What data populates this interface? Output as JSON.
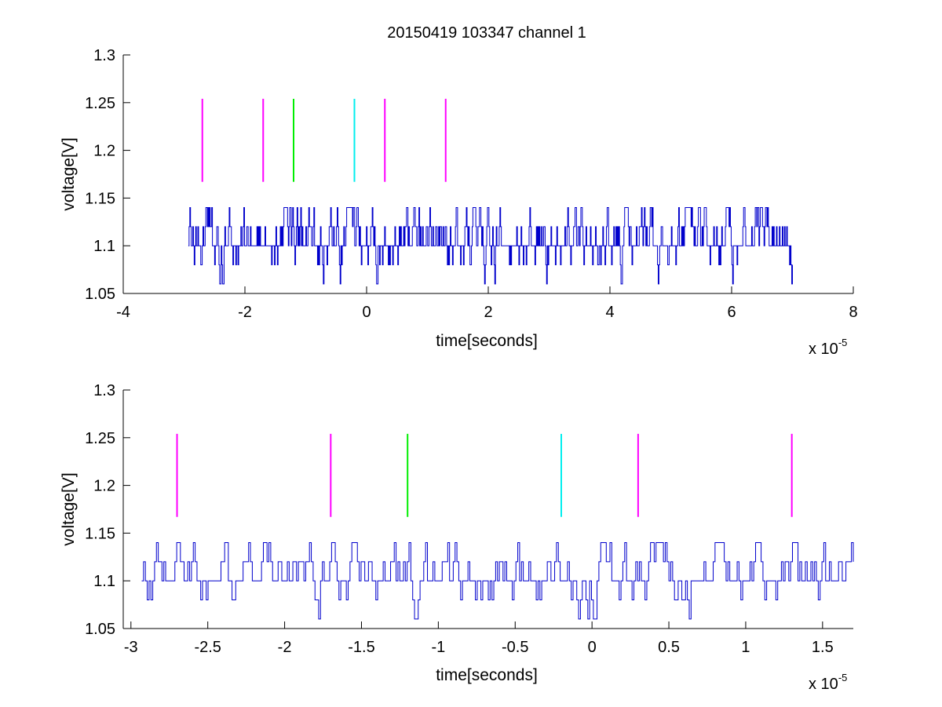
{
  "figure": {
    "title": "20150419 103347 channel 1"
  },
  "chart_data": [
    {
      "type": "line",
      "title": "20150419 103347 channel 1",
      "xlabel": "time[seconds]",
      "ylabel": "voltage[V]",
      "x_multiplier_label": "x 10",
      "x_multiplier_exponent": "-5",
      "xlim": [
        -4,
        8
      ],
      "ylim": [
        1.05,
        1.3
      ],
      "xticks": [
        -4,
        -2,
        0,
        2,
        4,
        6,
        8
      ],
      "xtick_labels": [
        "-4",
        "-2",
        "0",
        "2",
        "4",
        "6",
        "8"
      ],
      "yticks": [
        1.05,
        1.1,
        1.15,
        1.2,
        1.25,
        1.3
      ],
      "ytick_labels": [
        "1.05",
        "1.1",
        "1.15",
        "1.2",
        "1.25",
        "1.3"
      ],
      "grid": false,
      "signal": {
        "color": "#0000cc",
        "x_start": -2.93,
        "x_end": 7.0,
        "levels": [
          1.06,
          1.08,
          1.1,
          1.12,
          1.14
        ]
      },
      "markers": [
        {
          "x": -2.7,
          "y_range": [
            1.167,
            1.254
          ],
          "color": "#ff00ff"
        },
        {
          "x": -1.7,
          "y_range": [
            1.167,
            1.254
          ],
          "color": "#ff00ff"
        },
        {
          "x": -1.2,
          "y_range": [
            1.167,
            1.254
          ],
          "color": "#00ee00"
        },
        {
          "x": -0.2,
          "y_range": [
            1.167,
            1.254
          ],
          "color": "#00eeee"
        },
        {
          "x": 0.3,
          "y_range": [
            1.167,
            1.254
          ],
          "color": "#ff00ff"
        },
        {
          "x": 1.3,
          "y_range": [
            1.167,
            1.254
          ],
          "color": "#ff00ff"
        }
      ]
    },
    {
      "type": "line",
      "title": "",
      "xlabel": "time[seconds]",
      "ylabel": "voltage[V]",
      "x_multiplier_label": "x 10",
      "x_multiplier_exponent": "-5",
      "xlim": [
        -3.05,
        1.7
      ],
      "ylim": [
        1.05,
        1.3
      ],
      "xticks": [
        -3,
        -2.5,
        -2,
        -1.5,
        -1,
        -0.5,
        0,
        0.5,
        1,
        1.5
      ],
      "xtick_labels": [
        "-3",
        "-2.5",
        "-2",
        "-1.5",
        "-1",
        "-0.5",
        "0",
        "0.5",
        "1",
        "1.5"
      ],
      "yticks": [
        1.05,
        1.1,
        1.15,
        1.2,
        1.25,
        1.3
      ],
      "ytick_labels": [
        "1.05",
        "1.1",
        "1.15",
        "1.2",
        "1.25",
        "1.3"
      ],
      "grid": false,
      "signal": {
        "color": "#0000cc",
        "x_start": -2.93,
        "x_end": 1.7,
        "levels": [
          1.06,
          1.08,
          1.1,
          1.12,
          1.14
        ]
      },
      "markers": [
        {
          "x": -2.7,
          "y_range": [
            1.167,
            1.254
          ],
          "color": "#ff00ff"
        },
        {
          "x": -1.7,
          "y_range": [
            1.167,
            1.254
          ],
          "color": "#ff00ff"
        },
        {
          "x": -1.2,
          "y_range": [
            1.167,
            1.254
          ],
          "color": "#00ee00"
        },
        {
          "x": -0.2,
          "y_range": [
            1.167,
            1.254
          ],
          "color": "#00eeee"
        },
        {
          "x": 0.3,
          "y_range": [
            1.167,
            1.254
          ],
          "color": "#ff00ff"
        },
        {
          "x": 1.3,
          "y_range": [
            1.167,
            1.254
          ],
          "color": "#ff00ff"
        }
      ]
    }
  ]
}
